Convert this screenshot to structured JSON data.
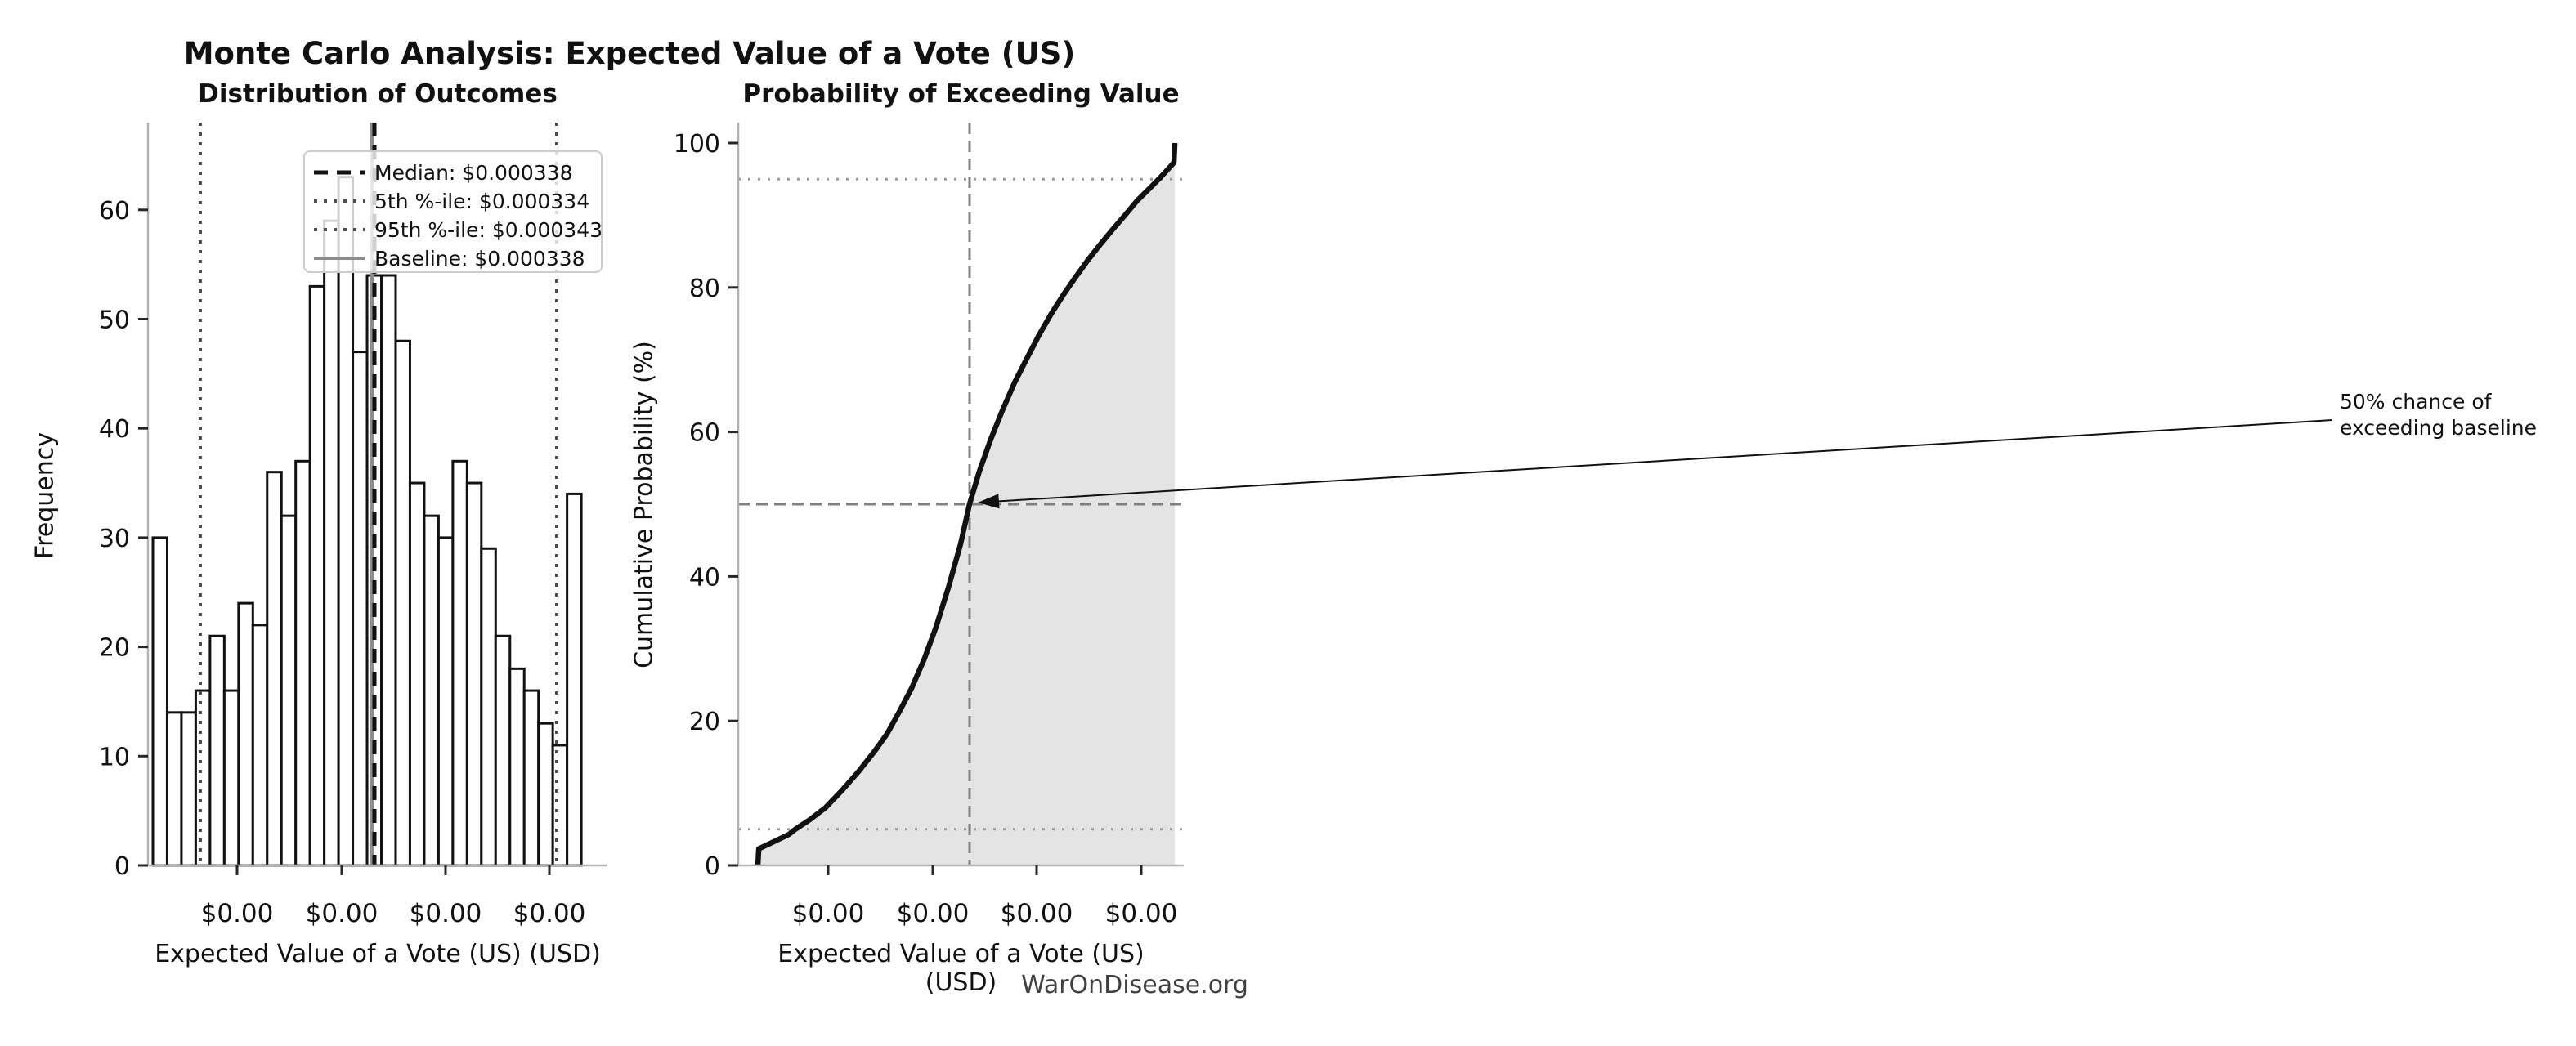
{
  "figure": {
    "title": "Monte Carlo Analysis: Expected Value of a Vote (US)",
    "footer": "WarOnDisease.org",
    "background": "#ffffff"
  },
  "colors": {
    "bar_fill": "#ffffff",
    "bar_edge": "#111111",
    "median_line": "#111111",
    "percentile_line": "#4d4d4d",
    "baseline_line": "#8c8c8c",
    "cdf_curve": "#111111",
    "cdf_fill": "#e4e4e4",
    "ref_dashed": "#808080",
    "ref_dotted": "#999999",
    "spine": "#b3b3b3",
    "tick": "#262626",
    "text": "#111111",
    "footer_text": "#404040"
  },
  "stats": {
    "median_usd": 0.000338,
    "p5_usd": 0.000334,
    "p95_usd": 0.000343,
    "baseline_usd": 0.000338
  },
  "left_plot": {
    "title": "Distribution of Outcomes",
    "xlabel": "Expected Value of a Vote (US) (USD)",
    "ylabel": "Frequency",
    "legend": [
      {
        "label": "Median: $0.000338",
        "style": "dashed-black"
      },
      {
        "label": "5th %-ile: $0.000334",
        "style": "dotted-dark"
      },
      {
        "label": "95th %-ile: $0.000343",
        "style": "dotted-dark"
      },
      {
        "label": "Baseline: $0.000338",
        "style": "solid-gray"
      }
    ]
  },
  "right_plot": {
    "title": "Probability of Exceeding Value",
    "xlabel": "Expected Value of a Vote (US) (USD)",
    "ylabel": "Cumulative Probability (%)",
    "annotation_lines": [
      "50% chance of",
      "exceeding baseline"
    ]
  },
  "chart_data": [
    {
      "type": "bar",
      "subtype": "histogram",
      "title": "Distribution of Outcomes",
      "xlabel": "Expected Value of a Vote (US) (USD)",
      "ylabel": "Frequency",
      "bins": 30,
      "x_range_usd": [
        0.000333,
        0.000343
      ],
      "values": [
        30,
        14,
        14,
        16,
        21,
        16,
        24,
        22,
        36,
        32,
        37,
        53,
        59,
        63,
        47,
        54,
        54,
        48,
        35,
        32,
        30,
        37,
        35,
        29,
        21,
        18,
        16,
        13,
        11,
        34
      ],
      "xtick_labels": [
        "$0.00",
        "$0.00",
        "$0.00",
        "$0.00"
      ],
      "yticks": [
        0,
        10,
        20,
        30,
        40,
        50,
        60
      ],
      "ylim": [
        0,
        68
      ],
      "grid": false,
      "legend_position": "upper-center",
      "markers": {
        "median": {
          "value_usd": 0.000338,
          "style": "dashed-black"
        },
        "p5": {
          "value_usd": 0.000334,
          "style": "dotted-dark"
        },
        "p95": {
          "value_usd": 0.000343,
          "style": "dotted-dark"
        },
        "baseline": {
          "value_usd": 0.000338,
          "style": "solid-gray"
        }
      }
    },
    {
      "type": "line",
      "subtype": "cdf",
      "title": "Probability of Exceeding Value",
      "xlabel": "Expected Value of a Vote (US) (USD)",
      "ylabel": "Cumulative Probability (%)",
      "xtick_labels": [
        "$0.00",
        "$0.00",
        "$0.00",
        "$0.00"
      ],
      "yticks": [
        0,
        20,
        40,
        60,
        80,
        100
      ],
      "ylim": [
        0,
        103
      ],
      "fill_under": true,
      "ref_lines": {
        "h_dotted_pct": [
          5,
          95
        ],
        "h_dashed_pct": 50,
        "v_dashed_at": "median"
      },
      "annotation": {
        "text": "50% chance of exceeding baseline",
        "points_to_pct": 50
      },
      "points_frac_pct": [
        [
          0.044,
          0
        ],
        [
          0.046,
          2.3
        ],
        [
          0.077,
          3.2
        ],
        [
          0.114,
          4.3
        ],
        [
          0.128,
          5.0
        ],
        [
          0.16,
          6.3
        ],
        [
          0.196,
          8.0
        ],
        [
          0.233,
          10.4
        ],
        [
          0.27,
          13.0
        ],
        [
          0.306,
          15.8
        ],
        [
          0.334,
          18.2
        ],
        [
          0.361,
          21.2
        ],
        [
          0.389,
          24.5
        ],
        [
          0.417,
          28.5
        ],
        [
          0.444,
          33.0
        ],
        [
          0.472,
          38.5
        ],
        [
          0.499,
          44.5
        ],
        [
          0.519,
          50.0
        ],
        [
          0.541,
          54.5
        ],
        [
          0.567,
          59.0
        ],
        [
          0.593,
          63.0
        ],
        [
          0.62,
          66.8
        ],
        [
          0.648,
          70.2
        ],
        [
          0.675,
          73.4
        ],
        [
          0.703,
          76.4
        ],
        [
          0.73,
          79.0
        ],
        [
          0.758,
          81.5
        ],
        [
          0.785,
          83.8
        ],
        [
          0.813,
          86.0
        ],
        [
          0.84,
          88.0
        ],
        [
          0.868,
          90.0
        ],
        [
          0.895,
          92.0
        ],
        [
          0.923,
          93.7
        ],
        [
          0.947,
          95.2
        ],
        [
          0.965,
          96.4
        ],
        [
          0.978,
          97.3
        ],
        [
          0.98,
          100
        ]
      ]
    }
  ]
}
